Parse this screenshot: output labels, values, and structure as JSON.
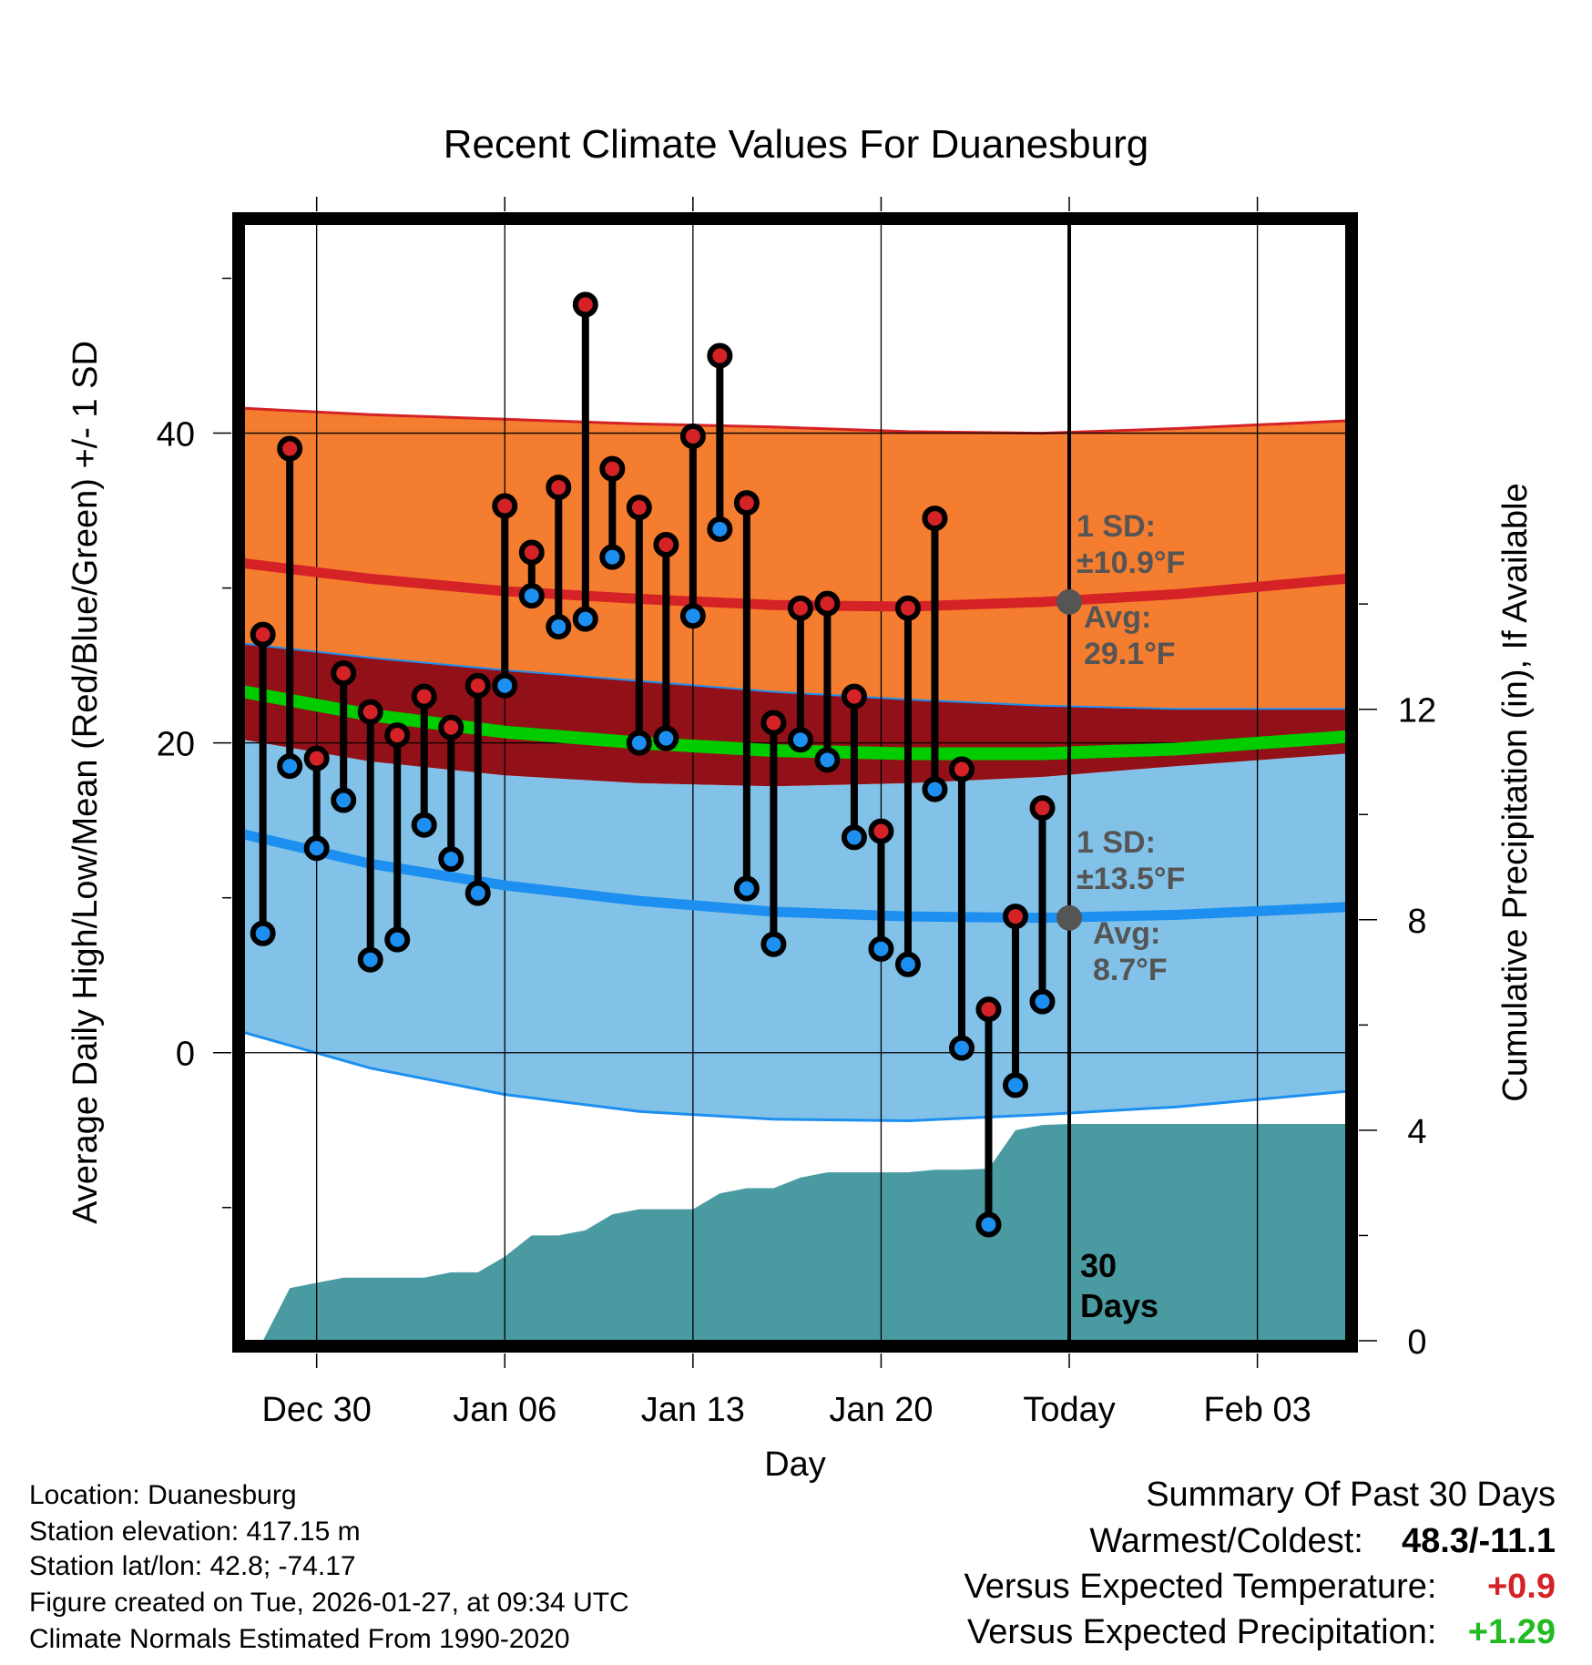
{
  "chart_data": {
    "type": "line",
    "title": "Recent Climate Values For Duanesburg",
    "xlabel": "Day",
    "ylabel": "Average Daily High/Low/Mean (Red/Blue/Green) +/- 1 SD",
    "ylabel_right": "Cumulative Precipitation (in), If Available",
    "x_ticks": [
      "Dec 30",
      "Jan 06",
      "Jan 13",
      "Jan 20",
      "Today",
      "Feb 03"
    ],
    "x_tick_days": [
      3,
      10,
      17,
      24,
      31,
      38
    ],
    "x_range_days": [
      0.3,
      41.3
    ],
    "y_ticks": [
      0,
      20,
      40
    ],
    "ylim": [
      -18.6,
      53.5
    ],
    "y2_ticks": [
      0,
      4,
      8,
      12
    ],
    "y2lim": [
      0,
      21.22
    ],
    "today_day": 31,
    "today_label": "30\nDays",
    "days": [
      1,
      2,
      3,
      4,
      5,
      6,
      7,
      8,
      9,
      10,
      11,
      12,
      13,
      14,
      15,
      16,
      17,
      18,
      19,
      20,
      21,
      22,
      23,
      24,
      25,
      26,
      27,
      28,
      29,
      30
    ],
    "daily_high": [
      27.0,
      39.0,
      19.0,
      24.5,
      22.0,
      20.5,
      23.0,
      21.0,
      23.7,
      35.3,
      32.3,
      36.5,
      48.3,
      37.7,
      35.2,
      32.8,
      39.8,
      45.0,
      35.5,
      21.3,
      28.7,
      29.0,
      23.0,
      14.3,
      28.7,
      34.5,
      18.3,
      2.8,
      8.8,
      15.8
    ],
    "daily_low": [
      7.7,
      18.5,
      13.2,
      16.3,
      6.0,
      7.3,
      14.7,
      12.5,
      10.3,
      23.7,
      29.5,
      27.5,
      28.0,
      32.0,
      20.0,
      20.3,
      28.2,
      33.8,
      10.6,
      7.0,
      20.2,
      18.9,
      13.9,
      6.7,
      5.7,
      17.0,
      0.3,
      -11.1,
      -2.1,
      3.3
    ],
    "normal_high": {
      "days": [
        0.3,
        5,
        10,
        15,
        20,
        25,
        30,
        35,
        41.3
      ],
      "avg": [
        31.6,
        30.6,
        29.8,
        29.3,
        28.9,
        28.8,
        29.1,
        29.6,
        30.6
      ],
      "upper": [
        41.6,
        41.2,
        40.9,
        40.6,
        40.4,
        40.1,
        40.0,
        40.3,
        40.8
      ],
      "lower": [
        26.4,
        25.5,
        24.7,
        24.0,
        23.3,
        22.8,
        22.4,
        22.2,
        22.2
      ]
    },
    "normal_mean": {
      "days": [
        0.3,
        5,
        10,
        15,
        20,
        25,
        30,
        35,
        41.3
      ],
      "avg": [
        23.3,
        21.8,
        20.7,
        20.0,
        19.5,
        19.3,
        19.3,
        19.6,
        20.4
      ]
    },
    "normal_low": {
      "days": [
        0.3,
        5,
        10,
        15,
        20,
        25,
        30,
        35,
        41.3
      ],
      "avg": [
        14.1,
        12.2,
        10.8,
        9.8,
        9.1,
        8.8,
        8.7,
        8.9,
        9.4
      ],
      "upper": [
        20.2,
        18.8,
        17.9,
        17.4,
        17.2,
        17.4,
        17.8,
        18.5,
        19.3
      ],
      "lower": [
        1.3,
        -1.0,
        -2.7,
        -3.8,
        -4.3,
        -4.4,
        -4.0,
        -3.5,
        -2.5
      ]
    },
    "precip": {
      "days": [
        0.3,
        1,
        2,
        3,
        4,
        5,
        6,
        7,
        8,
        9,
        10,
        11,
        12,
        13,
        14,
        15,
        16,
        17,
        18,
        19,
        20,
        21,
        22,
        23,
        24,
        25,
        26,
        27,
        28,
        29,
        30,
        31,
        41.3
      ],
      "values": [
        0,
        0,
        1.0,
        1.1,
        1.2,
        1.2,
        1.2,
        1.2,
        1.3,
        1.3,
        1.6,
        2.0,
        2.0,
        2.1,
        2.4,
        2.5,
        2.5,
        2.5,
        2.8,
        2.9,
        2.9,
        3.1,
        3.2,
        3.2,
        3.2,
        3.2,
        3.25,
        3.25,
        3.27,
        4.0,
        4.1,
        4.12,
        4.12
      ]
    },
    "annotations": {
      "high_sd": "1 SD:\n±10.9°F",
      "high_avg": "Avg:\n29.1°F",
      "low_sd": "1 SD:\n±13.5°F",
      "low_avg": "Avg:\n8.7°F"
    },
    "colors": {
      "high_band": "#f47d2f",
      "high_line": "#d42226",
      "low_band": "#82c2e8",
      "low_line": "#1c8ff0",
      "overlap_band": "#921018",
      "mean_line": "#00cc00",
      "precip": "#4a9aa2",
      "high_dot": "#d42226",
      "low_dot": "#1c8ff0",
      "annotation": "#555555"
    }
  },
  "info": {
    "location": "Location: Duanesburg",
    "elevation": "Station elevation: 417.15 m",
    "latlon": "Station lat/lon: 42.8; -74.17",
    "created": "Figure created on Tue, 2026-01-27, at 09:34 UTC",
    "normals": "Climate Normals Estimated From 1990-2020"
  },
  "summary": {
    "title": "Summary Of Past 30 Days",
    "warm_cold_label": "Warmest/Coldest:",
    "warm_cold_value": "48.3/-11.1",
    "temp_label": "Versus Expected Temperature:",
    "temp_value": "+0.9",
    "temp_color": "#d42226",
    "precip_label": "Versus Expected Precipitation:",
    "precip_value": "+1.29",
    "precip_color": "#22bb22"
  }
}
